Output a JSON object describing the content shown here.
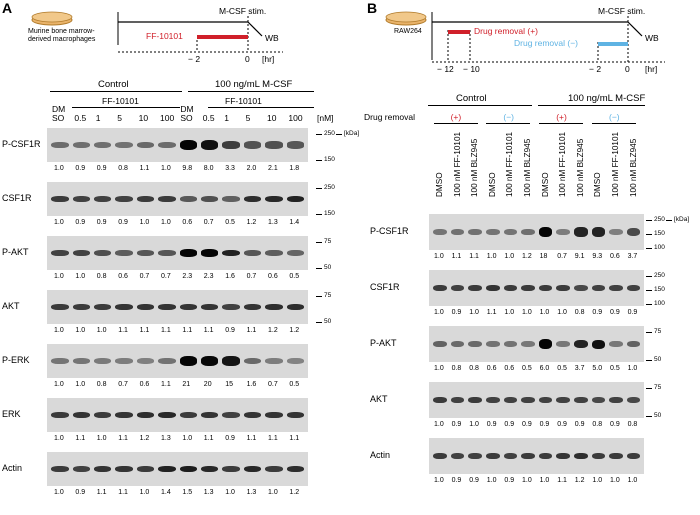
{
  "panelA": {
    "letter": "A",
    "schematic": {
      "cell_label_line1": "Murine bone marrow-",
      "cell_label_line2": "derived macrophages",
      "treatment": "FF-10101",
      "stim": "M-CSF stim.",
      "readout": "WB",
      "tick1": "− 2",
      "tick2": "0",
      "unit": "[hr]"
    },
    "groups": [
      "Control",
      "100 ng/mL M-CSF"
    ],
    "drug_label": "FF-10101",
    "lanes": [
      "DM\nSO",
      "0.5",
      "1",
      "5",
      "10",
      "100",
      "DM\nSO",
      "0.5",
      "1",
      "5",
      "10",
      "100"
    ],
    "conc_unit": "[nM]",
    "mw_unit": "[kDa]",
    "blots": [
      {
        "label": "P-CSF1R",
        "mw": [
          "250",
          "150"
        ],
        "values": [
          "1.0",
          "0.9",
          "0.9",
          "0.8",
          "1.1",
          "1.0",
          "9.8",
          "8.0",
          "3.3",
          "2.0",
          "2.1",
          "1.8"
        ]
      },
      {
        "label": "CSF1R",
        "mw": [
          "250",
          "150"
        ],
        "values": [
          "1.0",
          "0.9",
          "0.9",
          "0.9",
          "1.0",
          "1.0",
          "0.6",
          "0.7",
          "0.5",
          "1.2",
          "1.3",
          "1.4"
        ]
      },
      {
        "label": "P-AKT",
        "mw": [
          "75",
          "50"
        ],
        "values": [
          "1.0",
          "1.0",
          "0.8",
          "0.6",
          "0.7",
          "0.7",
          "2.3",
          "2.3",
          "1.6",
          "0.7",
          "0.6",
          "0.5"
        ]
      },
      {
        "label": "AKT",
        "mw": [
          "75",
          "50"
        ],
        "values": [
          "1.0",
          "1.0",
          "1.0",
          "1.1",
          "1.1",
          "1.1",
          "1.1",
          "1.1",
          "0.9",
          "1.1",
          "1.2",
          "1.2"
        ]
      },
      {
        "label": "P-ERK",
        "mw": [],
        "values": [
          "1.0",
          "1.0",
          "0.8",
          "0.7",
          "0.6",
          "1.1",
          "21",
          "20",
          "15",
          "1.6",
          "0.7",
          "0.5"
        ]
      },
      {
        "label": "ERK",
        "mw": [],
        "values": [
          "1.0",
          "1.1",
          "1.0",
          "1.1",
          "1.2",
          "1.3",
          "1.0",
          "1.1",
          "0.9",
          "1.1",
          "1.1",
          "1.1"
        ]
      },
      {
        "label": "Actin",
        "mw": [],
        "values": [
          "1.0",
          "0.9",
          "1.1",
          "1.1",
          "1.0",
          "1.4",
          "1.5",
          "1.3",
          "1.0",
          "1.3",
          "1.0",
          "1.2"
        ]
      }
    ]
  },
  "panelB": {
    "letter": "B",
    "schematic": {
      "cell_label": "RAW264",
      "removal_plus": "Drug removal (+)",
      "removal_minus": "Drug removal (−)",
      "stim": "M-CSF stim.",
      "readout": "WB",
      "tick1": "− 12",
      "tick2": "− 10",
      "tick3": "− 2",
      "tick4": "0",
      "unit": "[hr]"
    },
    "groups": [
      "Control",
      "100 ng/mL M-CSF"
    ],
    "removal_row_label": "Drug removal",
    "removal_marks": [
      "(+)",
      "(−)",
      "(+)",
      "(−)"
    ],
    "lanes": [
      "DMSO",
      "100 nM FF-10101",
      "100 nM BLZ945",
      "DMSO",
      "100 nM FF-10101",
      "100 nM BLZ945",
      "DMSO",
      "100 nM FF-10101",
      "100 nM BLZ945",
      "DMSO",
      "100 nM FF-10101",
      "100 nM BLZ945"
    ],
    "mw_unit": "[kDa]",
    "blots": [
      {
        "label": "P-CSF1R",
        "mw": [
          "250",
          "150",
          "100"
        ],
        "values": [
          "1.0",
          "1.1",
          "1.1",
          "1.0",
          "1.0",
          "1.2",
          "18",
          "0.7",
          "9.1",
          "9.3",
          "0.6",
          "3.7"
        ]
      },
      {
        "label": "CSF1R",
        "mw": [
          "250",
          "150",
          "100"
        ],
        "values": [
          "1.0",
          "0.9",
          "1.0",
          "1.1",
          "1.0",
          "1.0",
          "1.0",
          "1.0",
          "0.8",
          "0.9",
          "0.9",
          "0.9"
        ]
      },
      {
        "label": "P-AKT",
        "mw": [
          "75",
          "50"
        ],
        "values": [
          "1.0",
          "0.8",
          "0.8",
          "0.6",
          "0.6",
          "0.5",
          "6.0",
          "0.5",
          "3.7",
          "5.0",
          "0.5",
          "1.0"
        ]
      },
      {
        "label": "AKT",
        "mw": [
          "75",
          "50"
        ],
        "values": [
          "1.0",
          "0.9",
          "1.0",
          "0.9",
          "0.9",
          "0.9",
          "0.9",
          "0.9",
          "0.9",
          "0.8",
          "0.9",
          "0.8"
        ]
      },
      {
        "label": "Actin",
        "mw": [],
        "values": [
          "1.0",
          "0.9",
          "0.9",
          "1.0",
          "0.9",
          "1.0",
          "1.0",
          "1.1",
          "1.2",
          "1.0",
          "1.0",
          "1.0"
        ]
      }
    ]
  },
  "colors": {
    "red": "#d0202a",
    "blue": "#5fb3e3",
    "dish": "#e9b36a"
  }
}
